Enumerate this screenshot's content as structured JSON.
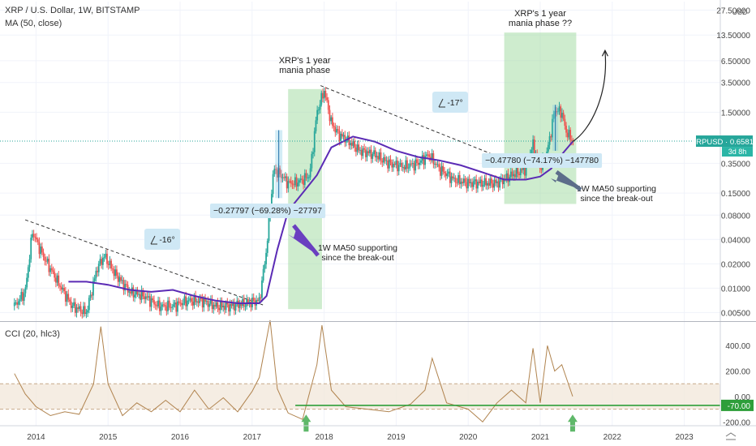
{
  "header": {
    "symbol_line": "XRP / U.S. Dollar, 1W, BITSTAMP",
    "ma_line": "MA (50, close)",
    "cci_line": "CCI (20, hlc3)"
  },
  "colors": {
    "up": "#26a69a",
    "down": "#ef5350",
    "ma": "#5b2bb5",
    "cci": "#b0834e",
    "zone": "#9ed99e",
    "support": "#2e9e3a",
    "arrow_purple": "#6a3fc0",
    "label_bg": "#cfe8f5"
  },
  "price_axis": {
    "currency": "USD",
    "ticks": [
      "27.50000",
      "13.50000",
      "6.50000",
      "3.50000",
      "1.50000",
      "0.65813",
      "0.35000",
      "0.15000",
      "0.08000",
      "0.04000",
      "0.02000",
      "0.01000",
      "0.00500"
    ],
    "last_label": "XRPUSD · 0.65813",
    "countdown": "3d 8h"
  },
  "cci_axis": {
    "ticks": [
      "400.00",
      "200.00",
      "0.00",
      "-70.00",
      "-200.00"
    ]
  },
  "time_axis": {
    "ticks": [
      "2014",
      "2015",
      "2016",
      "2017",
      "2018",
      "2019",
      "2020",
      "2021",
      "2022",
      "2023"
    ]
  },
  "annotations": {
    "mania1": "XRP's 1 year\nmania phase",
    "mania2": "XRP's 1 year\nmania phase ??",
    "angle1": "-16°",
    "angle2": "-17°",
    "measure1": "−0.27797 (−69.28%) −27797",
    "measure2": "−0.47780 (−74.17%) −147780",
    "support1": "1W MA50 supporting\nsince the break-out",
    "support2": "1W MA50 supporting\nsince the break-out"
  },
  "chart_data": {
    "type": "line",
    "title": "XRP / U.S. Dollar, 1W, BITSTAMP",
    "y_scale": "log",
    "ylim": [
      0.004,
      35
    ],
    "xlim": [
      2013.5,
      2023.5
    ],
    "series": [
      {
        "name": "XRPUSD",
        "x": [
          2013.7,
          2013.85,
          2013.95,
          2014.1,
          2014.3,
          2014.5,
          2014.7,
          2014.85,
          2014.95,
          2015.1,
          2015.3,
          2015.5,
          2015.7,
          2015.9,
          2016.1,
          2016.3,
          2016.5,
          2016.7,
          2016.9,
          2017.1,
          2017.2,
          2017.3,
          2017.4,
          2017.5,
          2017.6,
          2017.7,
          2017.8,
          2017.9,
          2018.0,
          2018.1,
          2018.2,
          2018.3,
          2018.5,
          2018.7,
          2018.9,
          2019.1,
          2019.3,
          2019.45,
          2019.6,
          2019.8,
          2020.0,
          2020.2,
          2020.4,
          2020.6,
          2020.8,
          2020.9,
          2021.0,
          2021.1,
          2021.2,
          2021.3,
          2021.35,
          2021.45
        ],
        "values": [
          0.006,
          0.009,
          0.05,
          0.025,
          0.012,
          0.006,
          0.005,
          0.018,
          0.025,
          0.015,
          0.009,
          0.008,
          0.006,
          0.006,
          0.007,
          0.007,
          0.006,
          0.006,
          0.0065,
          0.007,
          0.03,
          0.3,
          0.25,
          0.2,
          0.2,
          0.22,
          0.25,
          1.5,
          2.8,
          1.1,
          0.8,
          0.7,
          0.5,
          0.45,
          0.35,
          0.32,
          0.35,
          0.45,
          0.3,
          0.22,
          0.2,
          0.2,
          0.2,
          0.25,
          0.3,
          0.6,
          0.3,
          0.5,
          1.6,
          1.5,
          0.9,
          0.66
        ]
      },
      {
        "name": "MA (50, close)",
        "x": [
          2014.45,
          2014.7,
          2015.0,
          2015.3,
          2015.6,
          2015.9,
          2016.2,
          2016.5,
          2016.8,
          2017.1,
          2017.2,
          2017.35,
          2017.5,
          2017.7,
          2017.9,
          2018.1,
          2018.4,
          2018.7,
          2019.0,
          2019.3,
          2019.6,
          2019.9,
          2020.2,
          2020.5,
          2020.8,
          2021.0,
          2021.15,
          2021.3,
          2021.45
        ],
        "values": [
          0.012,
          0.012,
          0.011,
          0.0095,
          0.009,
          0.0095,
          0.008,
          0.007,
          0.0065,
          0.0065,
          0.008,
          0.03,
          0.09,
          0.15,
          0.25,
          0.55,
          0.75,
          0.65,
          0.5,
          0.42,
          0.38,
          0.33,
          0.27,
          0.22,
          0.22,
          0.24,
          0.3,
          0.45,
          0.65
        ]
      }
    ],
    "cci": {
      "name": "CCI (20, hlc3)",
      "ylim": [
        -230,
        580
      ],
      "levels": [
        100,
        -100,
        -70
      ],
      "x": [
        2013.7,
        2013.85,
        2014.0,
        2014.2,
        2014.4,
        2014.6,
        2014.8,
        2014.9,
        2015.0,
        2015.2,
        2015.4,
        2015.6,
        2015.8,
        2016.0,
        2016.2,
        2016.4,
        2016.6,
        2016.8,
        2017.0,
        2017.1,
        2017.25,
        2017.35,
        2017.5,
        2017.7,
        2017.9,
        2017.97,
        2018.1,
        2018.3,
        2018.6,
        2018.9,
        2019.2,
        2019.4,
        2019.5,
        2019.7,
        2020.0,
        2020.2,
        2020.4,
        2020.6,
        2020.8,
        2020.9,
        2021.0,
        2021.1,
        2021.2,
        2021.3,
        2021.45
      ],
      "values": [
        180,
        20,
        -80,
        -150,
        -120,
        -140,
        100,
        550,
        100,
        -150,
        -50,
        -120,
        -30,
        -120,
        50,
        -100,
        -10,
        -120,
        40,
        150,
        600,
        60,
        -130,
        -180,
        250,
        560,
        50,
        -80,
        -100,
        -120,
        -60,
        50,
        300,
        -50,
        -100,
        -200,
        -50,
        50,
        -50,
        380,
        -50,
        400,
        200,
        250,
        0
      ]
    }
  }
}
